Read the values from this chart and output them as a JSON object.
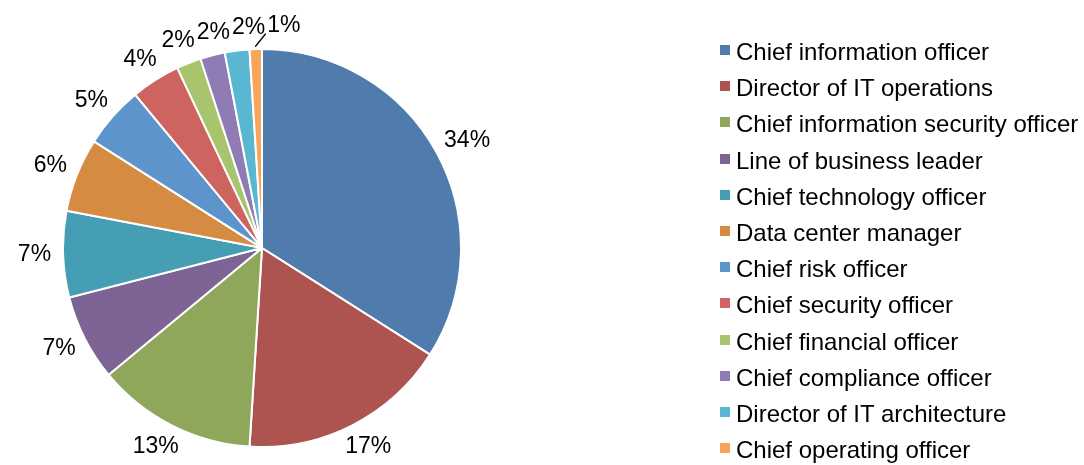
{
  "chart_data": {
    "type": "pie",
    "categories": [
      "Chief information officer",
      "Director of IT operations",
      "Chief information security officer",
      "Line of business leader",
      "Chief technology officer",
      "Data center manager",
      "Chief risk officer",
      "Chief security officer",
      "Chief financial officer",
      "Chief compliance officer",
      "Director of IT architecture",
      "Chief operating officer"
    ],
    "values": [
      34,
      17,
      13,
      7,
      7,
      6,
      5,
      4,
      2,
      2,
      2,
      1
    ],
    "colors": [
      "#4f7cac",
      "#ae5450",
      "#8fa75a",
      "#7d6494",
      "#469eb4",
      "#d68b43",
      "#5d94cb",
      "#cd645f",
      "#a8c46d",
      "#907cb4",
      "#5ab7d1",
      "#f6a55a"
    ],
    "value_labels": [
      "34%",
      "17%",
      "13%",
      "7%",
      "7%",
      "6%",
      "5%",
      "4%",
      "2%",
      "2%",
      "2%",
      "1%"
    ],
    "legend": "right"
  }
}
